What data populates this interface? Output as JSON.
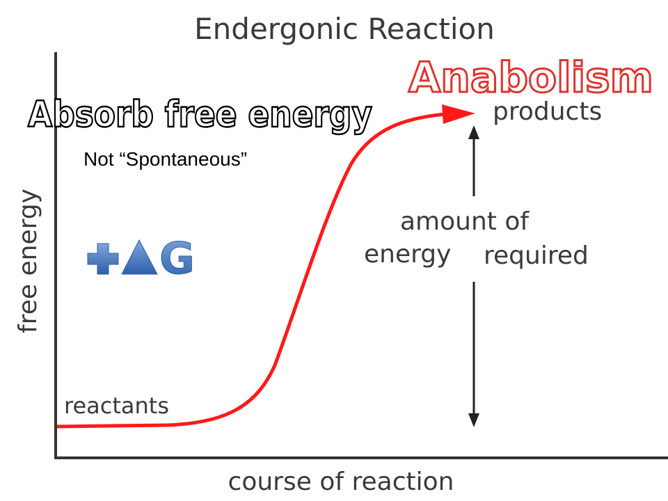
{
  "title": "Endergonic Reaction",
  "labels": {
    "anabolism": "Anabolism",
    "absorb": "Absorb free energy",
    "spontaneous": "Not “Spontaneous”",
    "delta_g": "G"
  },
  "axes": {
    "y_label": "free energy",
    "x_label": "course of reaction"
  },
  "annotations": {
    "reactants": "reactants",
    "products": "products",
    "amount_of": "amount of",
    "energy": "energy",
    "required": "required"
  }
}
